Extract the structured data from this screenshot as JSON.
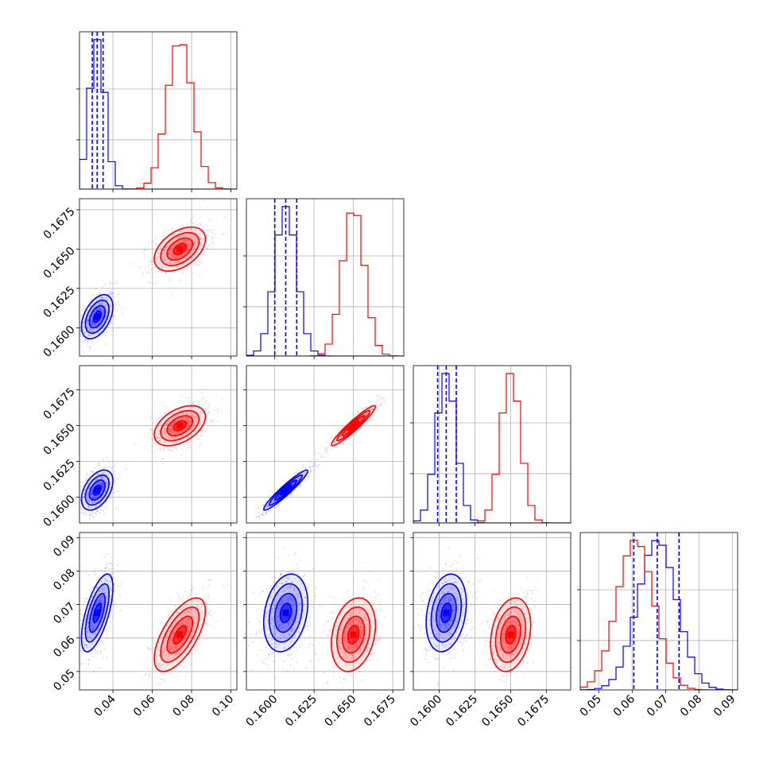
{
  "colors": {
    "blue": "#0000ff",
    "red": "#ff0000",
    "grid": "#b0b0b0"
  },
  "chart_data": {
    "type": "corner",
    "grid": true,
    "ylabels_rotated_deg": -45,
    "parameters": [
      {
        "range": [
          0.023,
          0.103
        ],
        "ticks": [
          0.04,
          0.06,
          0.08,
          0.1
        ],
        "tick_labels": [
          "0.04",
          "0.06",
          "0.08",
          "0.10"
        ]
      },
      {
        "range": [
          0.1582,
          0.1682
        ],
        "ticks": [
          0.16,
          0.1625,
          0.165,
          0.1675
        ],
        "tick_labels": [
          "0.1600",
          "0.1625",
          "0.1650",
          "0.1675"
        ]
      },
      {
        "range": [
          0.1582,
          0.1692
        ],
        "ticks": [
          0.16,
          0.1625,
          0.165,
          0.1675
        ],
        "tick_labels": [
          "0.1600",
          "0.1625",
          "0.1650",
          "0.1675"
        ]
      },
      {
        "range": [
          0.0445,
          0.0915
        ],
        "ticks": [
          0.05,
          0.06,
          0.07,
          0.08,
          0.09
        ],
        "tick_labels": [
          "0.05",
          "0.06",
          "0.07",
          "0.08",
          "0.09"
        ]
      }
    ],
    "series": [
      {
        "color": "blue",
        "means": [
          0.032,
          0.1607,
          0.1605,
          0.0675
        ],
        "sds": [
          0.004,
          0.0007,
          0.0007,
          0.0058
        ]
      },
      {
        "color": "red",
        "means": [
          0.074,
          0.165,
          0.165,
          0.061
        ],
        "sds": [
          0.0065,
          0.0007,
          0.0007,
          0.0055
        ]
      }
    ],
    "quantile_lines": [
      [
        0.0295,
        0.032,
        0.035
      ],
      [
        0.16,
        0.1607,
        0.1614
      ],
      [
        0.1599,
        0.1605,
        0.1612
      ],
      [
        0.0605,
        0.0675,
        0.074
      ]
    ],
    "quantile_color": "blue"
  }
}
